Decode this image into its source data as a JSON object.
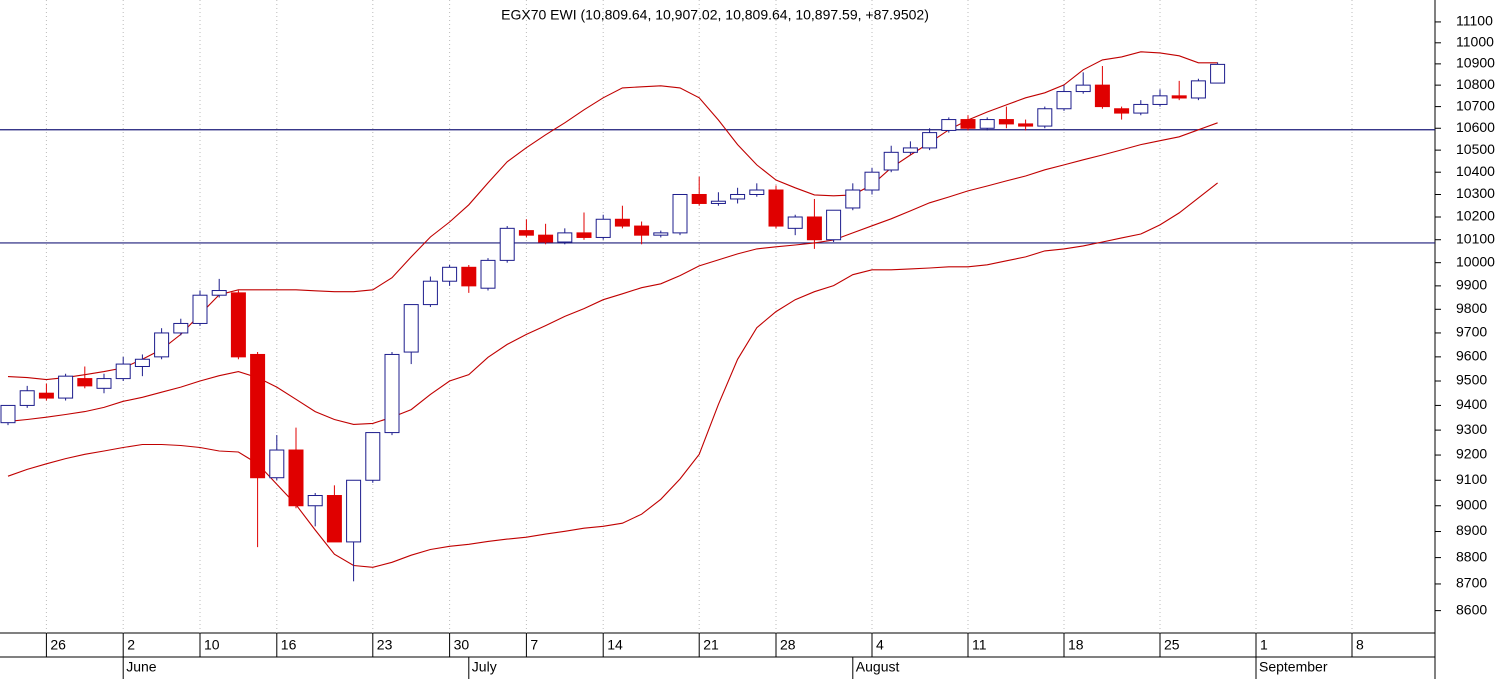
{
  "chart_data": {
    "type": "candlestick",
    "title": "EGX70 EWI (10,809.64, 10,907.02, 10,809.64, 10,897.59, +87.9502)",
    "categories": [
      null,
      null,
      "26",
      null,
      null,
      null,
      "2",
      null,
      null,
      null,
      "10",
      null,
      null,
      null,
      "16",
      null,
      null,
      null,
      null,
      "23",
      null,
      null,
      null,
      "30",
      null,
      null,
      null,
      "7",
      null,
      null,
      null,
      "14",
      null,
      null,
      null,
      null,
      "21",
      null,
      null,
      null,
      "28",
      null,
      null,
      null,
      null,
      "4",
      null,
      null,
      null,
      null,
      "11",
      null,
      null,
      null,
      null,
      "18",
      null,
      null,
      null,
      null,
      "25",
      null,
      null,
      null,
      null,
      "1",
      null,
      null,
      null,
      null,
      "8",
      null,
      null,
      null,
      null
    ],
    "months": [
      null,
      null,
      null,
      null,
      null,
      null,
      "June",
      null,
      null,
      null,
      null,
      null,
      null,
      null,
      null,
      null,
      null,
      null,
      null,
      null,
      null,
      null,
      null,
      null,
      "July",
      null,
      null,
      null,
      null,
      null,
      null,
      null,
      null,
      null,
      null,
      null,
      null,
      null,
      null,
      null,
      null,
      null,
      null,
      null,
      "August",
      null,
      null,
      null,
      null,
      null,
      null,
      null,
      null,
      null,
      null,
      null,
      null,
      null,
      null,
      null,
      null,
      null,
      null,
      null,
      null,
      "September",
      null,
      null,
      null,
      null,
      null,
      null,
      null,
      null,
      null
    ],
    "open": [
      9330,
      9400,
      9450,
      9430,
      9510,
      9470,
      9510,
      9560,
      9600,
      9700,
      9740,
      9860,
      9870,
      9610,
      9110,
      9220,
      9000,
      9040,
      8860,
      9100,
      9290,
      9620,
      9820,
      9920,
      9980,
      9890,
      10010,
      10140,
      10120,
      10090,
      10130,
      10110,
      10190,
      10160,
      10120,
      10130,
      10300,
      10260,
      10280,
      10300,
      10320,
      10150,
      10200,
      10100,
      10240,
      10320,
      10410,
      10490,
      10510,
      10590,
      10640,
      10600,
      10640,
      10620,
      10610,
      10690,
      10770,
      10800,
      10690,
      10670,
      10710,
      10750,
      10740,
      10809.64,
      null,
      null,
      null,
      null,
      null,
      null,
      null,
      null,
      null,
      null,
      null
    ],
    "high": [
      9400,
      9480,
      9490,
      9530,
      9560,
      9530,
      9600,
      9610,
      9720,
      9760,
      9880,
      9930,
      9880,
      9620,
      9280,
      9310,
      9050,
      9080,
      9100,
      9290,
      9620,
      9820,
      9940,
      9990,
      9990,
      10020,
      10160,
      10190,
      10170,
      10150,
      10220,
      10210,
      10250,
      10180,
      10140,
      10300,
      10380,
      10310,
      10330,
      10350,
      10340,
      10210,
      10280,
      10230,
      10350,
      10420,
      10520,
      10540,
      10600,
      10650,
      10660,
      10650,
      10700,
      10640,
      10700,
      10800,
      10860,
      10890,
      10700,
      10730,
      10780,
      10820,
      10830,
      10907.02,
      null,
      null,
      null,
      null,
      null,
      null,
      null,
      null,
      null,
      null,
      null
    ],
    "low": [
      9320,
      9390,
      9420,
      9420,
      9470,
      9450,
      9500,
      9520,
      9590,
      9690,
      9730,
      9850,
      9590,
      8840,
      9100,
      8990,
      8920,
      8860,
      8710,
      9090,
      9280,
      9570,
      9810,
      9900,
      9870,
      9880,
      10000,
      10110,
      10080,
      10080,
      10100,
      10100,
      10150,
      10080,
      10110,
      10120,
      10250,
      10250,
      10260,
      10290,
      10150,
      10120,
      10060,
      10090,
      10230,
      10300,
      10400,
      10480,
      10500,
      10580,
      10590,
      10590,
      10600,
      10590,
      10600,
      10680,
      10760,
      10690,
      10640,
      10660,
      10700,
      10730,
      10730,
      10809.64,
      null,
      null,
      null,
      null,
      null,
      null,
      null,
      null,
      null,
      null,
      null
    ],
    "close": [
      9400,
      9460,
      9430,
      9520,
      9480,
      9510,
      9570,
      9590,
      9700,
      9740,
      9860,
      9880,
      9600,
      9110,
      9220,
      9000,
      9040,
      8860,
      9100,
      9290,
      9610,
      9820,
      9920,
      9980,
      9900,
      10010,
      10150,
      10120,
      10090,
      10130,
      10110,
      10190,
      10160,
      10120,
      10130,
      10300,
      10260,
      10270,
      10300,
      10320,
      10160,
      10200,
      10100,
      10230,
      10320,
      10400,
      10490,
      10510,
      10580,
      10640,
      10600,
      10640,
      10620,
      10610,
      10690,
      10770,
      10800,
      10700,
      10670,
      10710,
      10750,
      10740,
      10820,
      10897.59,
      null,
      null,
      null,
      null,
      null,
      null,
      null,
      null,
      null,
      null,
      null
    ],
    "bands": [
      {
        "color": "#c00000",
        "values": [
          9518,
          9514,
          9506,
          9514,
          9526,
          9539,
          9554,
          9590,
          9631,
          9694,
          9778,
          9862,
          9883,
          9883,
          9883,
          9883,
          9879,
          9875,
          9875,
          9883,
          9935,
          10025,
          10112,
          10178,
          10254,
          10352,
          10447,
          10511,
          10570,
          10625,
          10685,
          10741,
          10787,
          10792,
          10797,
          10787,
          10741,
          10638,
          10525,
          10433,
          10365,
          10330,
          10298,
          10294,
          10298,
          10343,
          10420,
          10478,
          10534,
          10593,
          10638,
          10675,
          10708,
          10741,
          10764,
          10801,
          10872,
          10919,
          10933,
          10957,
          10952,
          10938,
          10905,
          10905,
          null,
          null,
          null,
          null,
          null,
          null,
          null,
          null,
          null,
          null,
          null
        ]
      },
      {
        "color": "#c00000",
        "values": [
          9335,
          9343,
          9352,
          9363,
          9375,
          9392,
          9417,
          9433,
          9454,
          9475,
          9500,
          9522,
          9539,
          9514,
          9475,
          9425,
          9375,
          9343,
          9323,
          9327,
          9352,
          9383,
          9445,
          9500,
          9526,
          9598,
          9652,
          9694,
          9731,
          9770,
          9803,
          9841,
          9866,
          9892,
          9909,
          9944,
          9986,
          10012,
          10038,
          10060,
          10069,
          10077,
          10086,
          10099,
          10130,
          10161,
          10192,
          10227,
          10263,
          10289,
          10316,
          10338,
          10361,
          10383,
          10411,
          10433,
          10456,
          10478,
          10501,
          10525,
          10543,
          10561,
          10593,
          10625,
          null,
          null,
          null,
          null,
          null,
          null,
          null,
          null,
          null,
          null,
          null
        ]
      },
      {
        "color": "#c00000",
        "values": [
          9116,
          9143,
          9165,
          9186,
          9203,
          9216,
          9230,
          9242,
          9242,
          9238,
          9230,
          9216,
          9212,
          9165,
          9084,
          9004,
          8906,
          8813,
          8770,
          8763,
          8782,
          8809,
          8831,
          8843,
          8851,
          8862,
          8871,
          8878,
          8890,
          8901,
          8913,
          8920,
          8932,
          8967,
          9025,
          9105,
          9203,
          9404,
          9590,
          9722,
          9790,
          9841,
          9875,
          9901,
          9948,
          9969,
          9969,
          9973,
          9977,
          9982,
          9982,
          9991,
          10008,
          10025,
          10051,
          10060,
          10073,
          10090,
          10108,
          10125,
          10165,
          10218,
          10285,
          10352,
          null,
          null,
          null,
          null,
          null,
          null,
          null,
          null,
          null,
          null,
          null
        ]
      }
    ],
    "hlines": [
      10593,
      10086
    ],
    "hline_color": "#1c1c7a",
    "up_color": "#1c1c8c",
    "down_color": "#e00000",
    "ylim": [
      8517,
      11206
    ],
    "yticks": [
      8600,
      8700,
      8800,
      8900,
      9000,
      9100,
      9200,
      9300,
      9400,
      9500,
      9600,
      9700,
      9800,
      9900,
      10000,
      10100,
      10200,
      10300,
      10400,
      10500,
      10600,
      10700,
      10800,
      10900,
      11000,
      11100
    ],
    "log_scale": true,
    "grid": true
  }
}
